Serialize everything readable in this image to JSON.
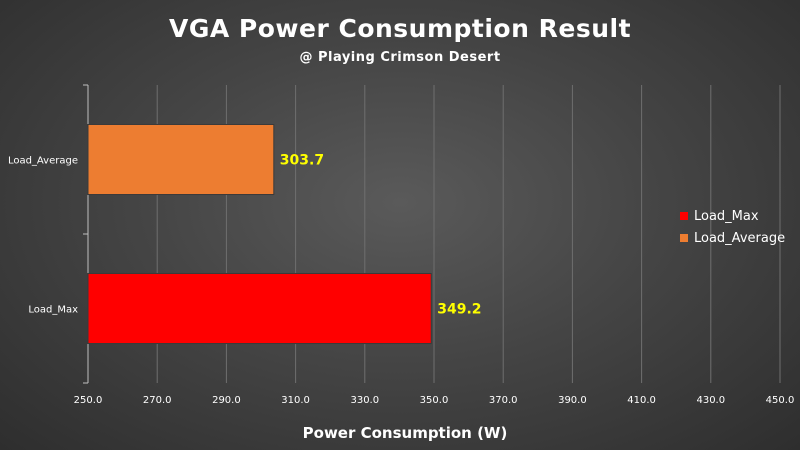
{
  "chart_data": {
    "type": "bar",
    "orientation": "horizontal",
    "title": "VGA Power Consumption Result",
    "subtitle": "@ Playing Crimson Desert",
    "xlabel": "Power Consumption (W)",
    "ylabel": "",
    "xlim": [
      250,
      450
    ],
    "x_ticks": [
      "250.0",
      "270.0",
      "290.0",
      "310.0",
      "330.0",
      "350.0",
      "370.0",
      "390.0",
      "410.0",
      "430.0",
      "450.0"
    ],
    "categories": [
      "Load_Average",
      "Load_Max"
    ],
    "values": [
      303.7,
      349.2
    ],
    "value_labels": [
      "303.7",
      "349.2"
    ],
    "bar_colors": [
      "#ED7D31",
      "#FF0000"
    ],
    "value_label_color": "#FFFF00",
    "grid": true,
    "legend_position": "right",
    "legend": [
      {
        "name": "Load_Max",
        "color": "#FF0000"
      },
      {
        "name": "Load_Average",
        "color": "#ED7D31"
      }
    ]
  }
}
